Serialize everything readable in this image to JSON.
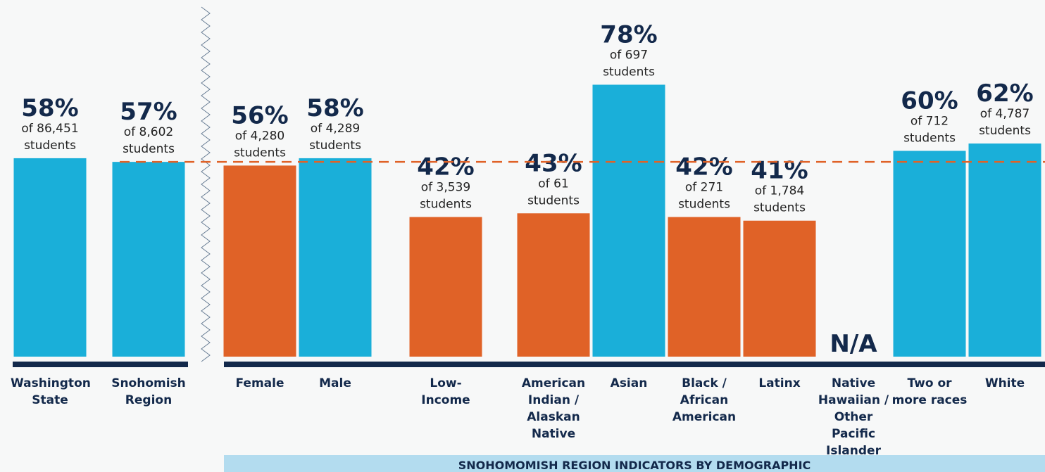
{
  "chart_data": {
    "type": "bar",
    "categories": [
      "Washington State",
      "Snohomish Region",
      "Female",
      "Male",
      "Low-Income",
      "American Indian / Alaskan Native",
      "Asian",
      "Black / African American",
      "Latinx",
      "Native Hawaiian / Other Pacific Islander",
      "Two or more races",
      "White"
    ],
    "values": [
      58,
      57,
      56,
      58,
      42,
      43,
      78,
      42,
      41,
      null,
      60,
      62
    ],
    "value_labels": [
      "58%",
      "57%",
      "56%",
      "58%",
      "42%",
      "43%",
      "78%",
      "42%",
      "41%",
      "N/A",
      "60%",
      "62%"
    ],
    "sublabels": [
      [
        "of 86,451",
        "students"
      ],
      [
        "of 8,602",
        "students"
      ],
      [
        "of 4,280",
        "students"
      ],
      [
        "of 4,289",
        "students"
      ],
      [
        "of 3,539",
        "students"
      ],
      [
        "of 61",
        "students"
      ],
      [
        "of 697",
        "students"
      ],
      [
        "of 271",
        "students"
      ],
      [
        "of 1,784",
        "students"
      ],
      null,
      [
        "of 712",
        "students"
      ],
      [
        "of 4,787",
        "students"
      ]
    ],
    "colors": [
      "#1aafd9",
      "#1aafd9",
      "#e06227",
      "#1aafd9",
      "#e06227",
      "#e06227",
      "#1aafd9",
      "#e06227",
      "#e06227",
      null,
      "#1aafd9",
      "#1aafd9"
    ],
    "reference_line": 57,
    "reference_color": "#e06227",
    "ylim": [
      4,
      80
    ],
    "group_label": "SNOHOMOMISH REGION INDICATORS BY DEMOGRAPHIC"
  }
}
